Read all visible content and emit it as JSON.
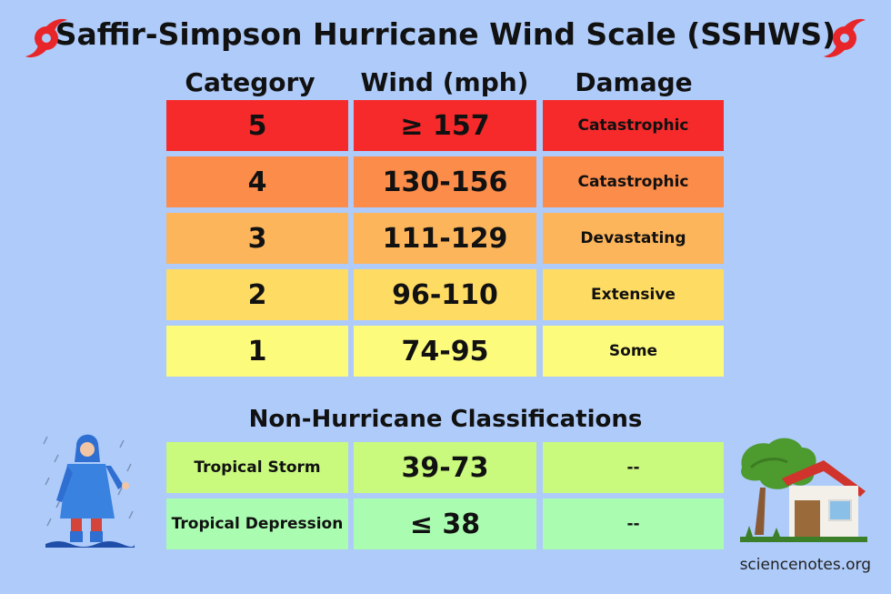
{
  "title": "Saffir-Simpson Hurricane Wind Scale (SSHWS)",
  "headers": {
    "category": "Category",
    "wind": "Wind (mph)",
    "damage": "Damage"
  },
  "hurricane_rows": [
    {
      "category": "5",
      "wind": "≥ 157",
      "damage": "Catastrophic",
      "color": "#f62a2a"
    },
    {
      "category": "4",
      "wind": "130-156",
      "damage": "Catastrophic",
      "color": "#fb8c4a"
    },
    {
      "category": "3",
      "wind": "111-129",
      "damage": "Devastating",
      "color": "#fdb55b"
    },
    {
      "category": "2",
      "wind": "96-110",
      "damage": "Extensive",
      "color": "#fedb62"
    },
    {
      "category": "1",
      "wind": "74-95",
      "damage": "Some",
      "color": "#fdfb7c"
    }
  ],
  "non_hurricane_title": "Non-Hurricane Classifications",
  "non_hurricane_rows": [
    {
      "category": "Tropical Storm",
      "wind": "39-73",
      "damage": "--",
      "color": "#c9f97d"
    },
    {
      "category": "Tropical Depression",
      "wind": "≤ 38",
      "damage": "--",
      "color": "#aafdb0"
    }
  ],
  "credit": "sciencenotes.org",
  "icons": {
    "hurricane": "hurricane-symbol-icon",
    "person": "person-in-raincoat-illustration",
    "house": "house-in-storm-illustration"
  },
  "colors": {
    "background": "#aecbfa",
    "hurricane_symbol": "#e8262a"
  }
}
